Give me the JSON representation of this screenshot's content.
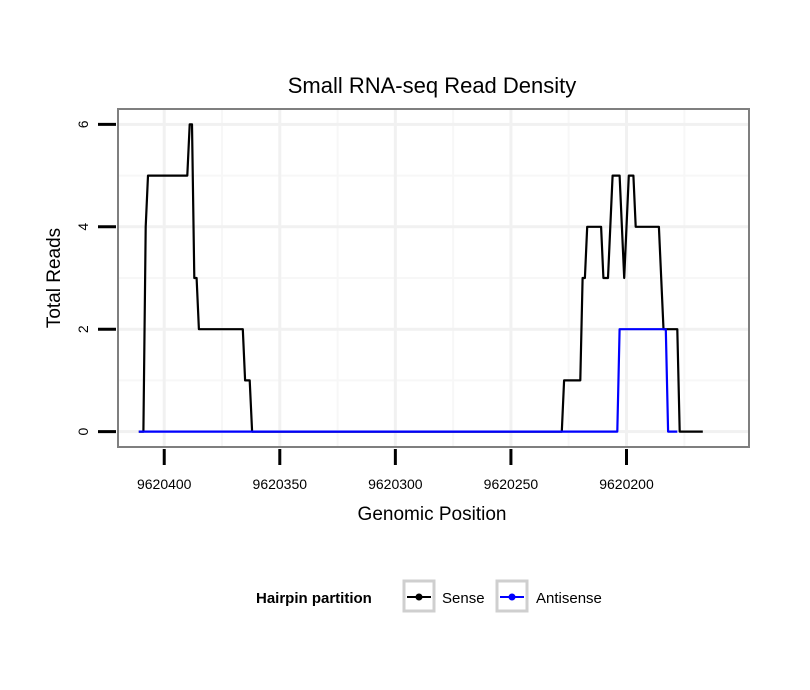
{
  "chart_data": {
    "type": "line",
    "title": "Small RNA-seq Read Density",
    "xlabel": "Genomic Position",
    "ylabel": "Total Reads",
    "x_reversed": true,
    "xlim": [
      9620420,
      9620147
    ],
    "ylim": [
      -0.3,
      6.3
    ],
    "x_ticks": [
      9620400,
      9620350,
      9620300,
      9620250,
      9620200
    ],
    "x_tick_labels": [
      "9620400",
      "9620350",
      "9620300",
      "9620250",
      "9620200"
    ],
    "y_ticks": [
      0,
      2,
      4,
      6
    ],
    "y_tick_labels": [
      "0",
      "2",
      "4",
      "6"
    ],
    "grid": true,
    "legend": {
      "title": "Hairpin partition",
      "position": "bottom",
      "entries": [
        "Sense",
        "Antisense"
      ]
    },
    "series": [
      {
        "name": "Sense",
        "color": "#000000",
        "points": [
          [
            9620411,
            0
          ],
          [
            9620409,
            0
          ],
          [
            9620408,
            4
          ],
          [
            9620407,
            5
          ],
          [
            9620390,
            5
          ],
          [
            9620389,
            6
          ],
          [
            9620388,
            6
          ],
          [
            9620387,
            3
          ],
          [
            9620386,
            3
          ],
          [
            9620385,
            2
          ],
          [
            9620366,
            2
          ],
          [
            9620365,
            1
          ],
          [
            9620363,
            1
          ],
          [
            9620362,
            0
          ],
          [
            9620228,
            0
          ],
          [
            9620227,
            1
          ],
          [
            9620220,
            1
          ],
          [
            9620219,
            3
          ],
          [
            9620218,
            3
          ],
          [
            9620217,
            4
          ],
          [
            9620211,
            4
          ],
          [
            9620210,
            3
          ],
          [
            9620208,
            3
          ],
          [
            9620207,
            4
          ],
          [
            9620206,
            5
          ],
          [
            9620203,
            5
          ],
          [
            9620202,
            4
          ],
          [
            9620201,
            3
          ],
          [
            9620200,
            4
          ],
          [
            9620199,
            5
          ],
          [
            9620197,
            5
          ],
          [
            9620196,
            4
          ],
          [
            9620186,
            4
          ],
          [
            9620185,
            3
          ],
          [
            9620184,
            2
          ],
          [
            9620178,
            2
          ],
          [
            9620177,
            0
          ],
          [
            9620167,
            0
          ]
        ]
      },
      {
        "name": "Antisense",
        "color": "#0000ff",
        "points": [
          [
            9620411,
            0
          ],
          [
            9620204,
            0
          ],
          [
            9620203,
            2
          ],
          [
            9620183,
            2
          ],
          [
            9620182,
            0
          ],
          [
            9620178,
            0
          ]
        ]
      }
    ]
  }
}
